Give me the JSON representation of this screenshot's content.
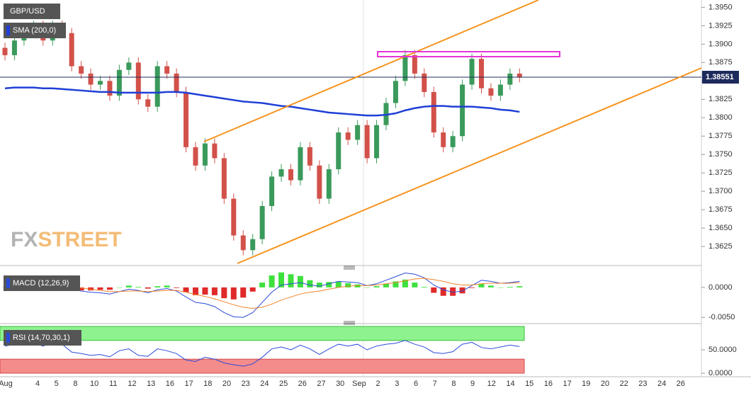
{
  "chart_data": {
    "type": "candlestick",
    "title": "GBP/USD",
    "x_labels": [
      "Aug",
      "4",
      "5",
      "8",
      "10",
      "11",
      "12",
      "13",
      "16",
      "17",
      "18",
      "20",
      "23",
      "24",
      "25",
      "26",
      "27",
      "30",
      "Sep",
      "2",
      "3",
      "6",
      "7",
      "8",
      "9",
      "12",
      "14",
      "15",
      "16",
      "17",
      "19",
      "20",
      "22",
      "23",
      "24",
      "26"
    ],
    "open": [
      1.3895,
      1.3885,
      1.3905,
      1.3915,
      1.3925,
      1.3905,
      1.3925,
      1.3915,
      1.387,
      1.386,
      1.3845,
      1.385,
      1.383,
      1.3865,
      1.3875,
      1.3825,
      1.3815,
      1.387,
      1.386,
      1.3835,
      1.376,
      1.3735,
      1.3765,
      1.3745,
      1.369,
      1.364,
      1.362,
      1.3635,
      1.368,
      1.372,
      1.373,
      1.3715,
      1.376,
      1.3735,
      1.369,
      1.373,
      1.378,
      1.377,
      1.379,
      1.3745,
      1.379,
      1.382,
      1.385,
      1.3885,
      1.386,
      1.3835,
      1.378,
      1.376,
      1.3775,
      1.3845,
      1.388,
      1.384,
      1.383,
      1.3845,
      1.386
    ],
    "high": [
      1.3902,
      1.3912,
      1.3922,
      1.3932,
      1.3932,
      1.3932,
      1.3932,
      1.3922,
      1.3877,
      1.3867,
      1.3857,
      1.3857,
      1.3872,
      1.3882,
      1.3882,
      1.3832,
      1.3877,
      1.3877,
      1.3867,
      1.3842,
      1.3767,
      1.3772,
      1.3772,
      1.3752,
      1.3697,
      1.3647,
      1.3642,
      1.3687,
      1.3727,
      1.3737,
      1.3737,
      1.3767,
      1.3767,
      1.3742,
      1.3737,
      1.3787,
      1.3787,
      1.3797,
      1.3797,
      1.3797,
      1.3827,
      1.3857,
      1.3892,
      1.3892,
      1.3867,
      1.3842,
      1.3787,
      1.3782,
      1.3852,
      1.3887,
      1.3887,
      1.3847,
      1.3852,
      1.3867,
      1.3867
    ],
    "low": [
      1.3878,
      1.3878,
      1.3898,
      1.3908,
      1.3898,
      1.3898,
      1.3908,
      1.3863,
      1.3853,
      1.3838,
      1.3838,
      1.3823,
      1.3823,
      1.3858,
      1.3818,
      1.3808,
      1.3808,
      1.3853,
      1.3828,
      1.3753,
      1.3728,
      1.3728,
      1.3738,
      1.3683,
      1.3633,
      1.3613,
      1.3613,
      1.3628,
      1.3673,
      1.3713,
      1.3708,
      1.3708,
      1.3728,
      1.3683,
      1.3683,
      1.3723,
      1.3763,
      1.3763,
      1.3738,
      1.3738,
      1.3783,
      1.3813,
      1.3843,
      1.3853,
      1.3828,
      1.3773,
      1.3753,
      1.3753,
      1.3768,
      1.3838,
      1.3833,
      1.3823,
      1.3823,
      1.3838,
      1.3848
    ],
    "close": [
      1.3885,
      1.3905,
      1.3915,
      1.3925,
      1.3905,
      1.3925,
      1.3915,
      1.387,
      1.386,
      1.3845,
      1.385,
      1.383,
      1.3865,
      1.3875,
      1.3825,
      1.3815,
      1.387,
      1.386,
      1.3835,
      1.376,
      1.3735,
      1.3765,
      1.3745,
      1.369,
      1.364,
      1.362,
      1.3635,
      1.368,
      1.372,
      1.373,
      1.3715,
      1.376,
      1.3735,
      1.369,
      1.373,
      1.378,
      1.377,
      1.379,
      1.3745,
      1.379,
      1.382,
      1.385,
      1.3885,
      1.386,
      1.3835,
      1.378,
      1.376,
      1.3775,
      1.3845,
      1.388,
      1.384,
      1.383,
      1.3845,
      1.386,
      1.3855
    ],
    "up_color": "#3a9a5b",
    "down_color": "#d2514a",
    "ylim": [
      1.3602,
      1.396
    ],
    "yticks": [
      {
        "value": 1.395,
        "label": "1.3950"
      },
      1.3925,
      {
        "value": 1.39,
        "label": "1.3900"
      },
      1.3875,
      {
        "value": 1.385,
        "label": "1.3850"
      },
      1.3825,
      {
        "value": 1.38,
        "label": "1.3800"
      },
      1.3775,
      {
        "value": 1.375,
        "label": "1.3750"
      },
      1.3725,
      {
        "value": 1.37,
        "label": "1.3700"
      },
      1.3675,
      {
        "value": 1.365,
        "label": "1.3650"
      },
      1.3625
    ],
    "last_price": 1.38551,
    "sma": {
      "name": "SMA (200,0)",
      "color": "#1f3fd6",
      "values": [
        1.384,
        1.3841,
        1.3841,
        1.3841,
        1.384,
        1.384,
        1.3839,
        1.3838,
        1.3837,
        1.3836,
        1.3835,
        1.3835,
        1.3834,
        1.3834,
        1.3834,
        1.3834,
        1.3834,
        1.3835,
        1.3835,
        1.3834,
        1.3832,
        1.383,
        1.3828,
        1.3826,
        1.3824,
        1.3822,
        1.3821,
        1.382,
        1.3818,
        1.3816,
        1.3815,
        1.3813,
        1.3811,
        1.3809,
        1.3807,
        1.3806,
        1.3805,
        1.3804,
        1.3803,
        1.3803,
        1.3804,
        1.3806,
        1.381,
        1.3813,
        1.3815,
        1.3816,
        1.3816,
        1.3815,
        1.3815,
        1.3815,
        1.3814,
        1.3813,
        1.3811,
        1.381,
        1.3808
      ]
    },
    "macd": {
      "name": "MACD (12,26,9)",
      "ylim": [
        -0.0058,
        0.0027
      ],
      "yticks": [
        {
          "value": 0,
          "label": "0.0000"
        },
        {
          "value": -0.005,
          "label": "-0.0050"
        }
      ],
      "macd_color": "#2a4bd8",
      "signal_color": "#f0842a",
      "positive_color": "#3ee03e",
      "negative_color": "#e02a2a",
      "macd": [
        0.0002,
        0.0,
        0.0001,
        0.0003,
        0.0004,
        0.0004,
        0.0003,
        -0.0003,
        -0.0006,
        -0.0008,
        -0.0009,
        -0.0011,
        -0.0007,
        -0.0003,
        -0.0005,
        -0.0009,
        -0.0004,
        -0.0002,
        -0.0006,
        -0.0016,
        -0.0025,
        -0.0027,
        -0.0032,
        -0.0042,
        -0.0049,
        -0.005,
        -0.0042,
        -0.0025,
        -0.0008,
        0.0004,
        0.0006,
        0.0008,
        0.0004,
        0.0002,
        0.0006,
        0.001,
        0.0009,
        0.0008,
        0.0003,
        0.0006,
        0.0012,
        0.0018,
        0.0024,
        0.0022,
        0.0016,
        0.0004,
        -0.0004,
        -0.0008,
        -0.0006,
        0.0003,
        0.0012,
        0.001,
        0.0007,
        0.0008,
        0.001
      ],
      "signal": [
        0.0002,
        0.0001,
        0.0001,
        0.0002,
        0.0002,
        0.0003,
        0.0003,
        0.0001,
        -0.0001,
        -0.0003,
        -0.0005,
        -0.0007,
        -0.0007,
        -0.0006,
        -0.0006,
        -0.0007,
        -0.0006,
        -0.0005,
        -0.0005,
        -0.0008,
        -0.0012,
        -0.0015,
        -0.0019,
        -0.0024,
        -0.0029,
        -0.0033,
        -0.0035,
        -0.0033,
        -0.0028,
        -0.0021,
        -0.0016,
        -0.0011,
        -0.0008,
        -0.0006,
        -0.0003,
        0.0,
        0.0002,
        0.0003,
        0.0003,
        0.0004,
        0.0006,
        0.0008,
        0.0011,
        0.0014,
        0.0015,
        0.0013,
        0.001,
        0.0006,
        0.0004,
        0.0004,
        0.0006,
        0.0007,
        0.0007,
        0.0007,
        0.0008
      ],
      "histogram": [
        0.0,
        -0.0001,
        0.0,
        0.0001,
        0.0002,
        0.0001,
        0.0,
        -0.0004,
        -0.0005,
        -0.0005,
        -0.0004,
        -0.0004,
        0.0,
        0.0003,
        0.0001,
        -0.0002,
        0.0002,
        0.0003,
        -0.0001,
        -0.0008,
        -0.0013,
        -0.0012,
        -0.0013,
        -0.0018,
        -0.002,
        -0.0017,
        -0.0007,
        0.0008,
        0.002,
        0.0025,
        0.0022,
        0.0019,
        0.0012,
        0.0008,
        0.0009,
        0.001,
        0.0007,
        0.0005,
        0.0,
        0.0002,
        0.0006,
        0.001,
        0.0013,
        0.0008,
        0.0001,
        -0.0009,
        -0.0014,
        -0.0014,
        -0.001,
        -0.0001,
        0.0006,
        0.0003,
        0.0,
        0.0001,
        0.0002
      ]
    },
    "rsi": {
      "name": "RSI (14,70,30,1)",
      "ylim": [
        0,
        100
      ],
      "yticks": [
        {
          "value": 50,
          "label": "50.0000"
        },
        {
          "value": 0,
          "label": "0.0000"
        }
      ],
      "overbought": 70,
      "oversold": 30,
      "color": "#2a4bd8",
      "values": [
        58,
        62,
        66,
        64,
        58,
        66,
        62,
        45,
        42,
        38,
        40,
        35,
        48,
        52,
        38,
        36,
        52,
        48,
        42,
        28,
        25,
        34,
        30,
        22,
        18,
        15,
        20,
        34,
        52,
        56,
        50,
        60,
        52,
        40,
        52,
        62,
        58,
        62,
        50,
        58,
        62,
        64,
        70,
        62,
        56,
        44,
        42,
        46,
        62,
        66,
        55,
        52,
        56,
        60,
        57
      ]
    },
    "watermark": {
      "fx": "FX",
      "street": "STREET"
    }
  }
}
